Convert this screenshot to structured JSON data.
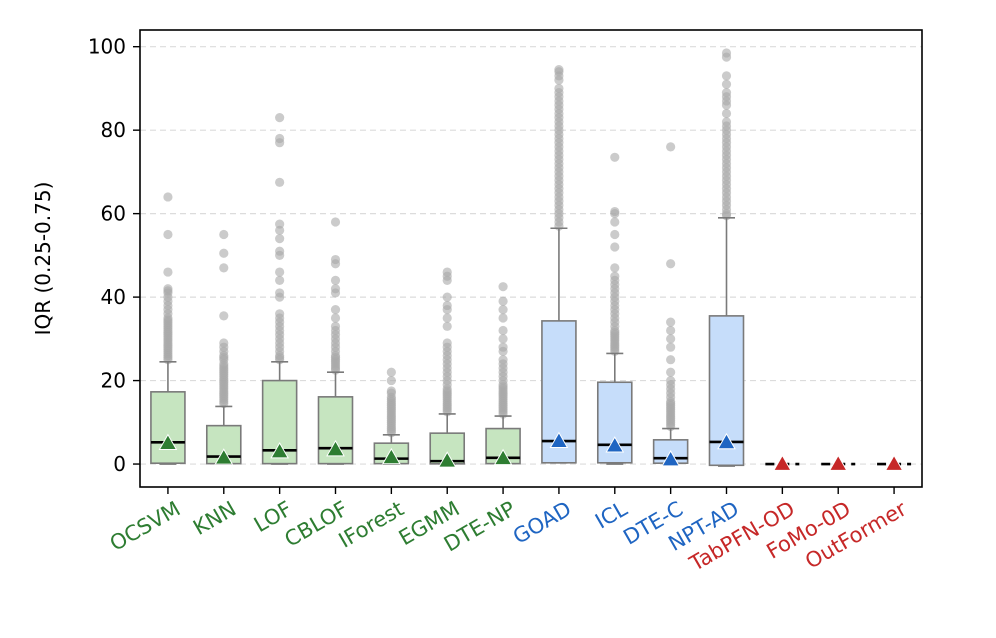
{
  "chart_data": {
    "type": "box",
    "title": "",
    "xlabel": "",
    "ylabel": "IQR (0.25-0.75)",
    "ylim": [
      -5.5,
      104
    ],
    "yticks": [
      0,
      20,
      40,
      60,
      80,
      100
    ],
    "grid": "horizontal dashed",
    "legend": "none",
    "colors": {
      "classical": "#2e7d32",
      "deep": "#1f65c2",
      "foundation": "#c62828",
      "classical_box": "#c6e5c0",
      "deep_box": "#c6ddfa",
      "whisker": "#7a7a7a",
      "median": "#000000",
      "outlier": "#a8a8a8"
    },
    "categories": [
      {
        "name": "OCSVM",
        "group": "classical",
        "q1": 0.2,
        "median": 5.2,
        "q3": 17.3,
        "whislo": 0,
        "whishi": 24.5,
        "mean": 5.0,
        "fliers": [
          25,
          25.5,
          26,
          26.5,
          27,
          27.5,
          28,
          28.5,
          29,
          29.5,
          30,
          30.5,
          31,
          31.5,
          32,
          32.5,
          33,
          33.5,
          34,
          34.5,
          35,
          36,
          37,
          38,
          39,
          40,
          41,
          41.5,
          42,
          46,
          55,
          64
        ]
      },
      {
        "name": "KNN",
        "group": "classical",
        "q1": 0.1,
        "median": 1.8,
        "q3": 9.2,
        "whislo": 0,
        "whishi": 13.8,
        "mean": 1.5,
        "fliers": [
          14.5,
          15,
          15.5,
          16,
          16.5,
          17,
          17.5,
          18,
          18.5,
          19,
          19.5,
          20,
          20.5,
          21,
          21.5,
          22,
          22.5,
          23,
          23.5,
          24,
          25,
          25.5,
          26,
          27,
          28,
          29,
          35.5,
          47,
          50.5,
          55
        ]
      },
      {
        "name": "LOF",
        "group": "classical",
        "q1": 0.1,
        "median": 3.3,
        "q3": 20.0,
        "whislo": 0,
        "whishi": 24.5,
        "mean": 3.0,
        "fliers": [
          25,
          25.5,
          26,
          27,
          28,
          29,
          30,
          31,
          32,
          33,
          34,
          35,
          36,
          40,
          41,
          44,
          46,
          50,
          51,
          54,
          56,
          57.5,
          67.5,
          77,
          78,
          83
        ]
      },
      {
        "name": "CBLOF",
        "group": "classical",
        "q1": 0.1,
        "median": 3.8,
        "q3": 16.1,
        "whislo": 0,
        "whishi": 22.0,
        "mean": 3.5,
        "fliers": [
          22.5,
          23,
          23.5,
          24,
          24.5,
          25,
          25.5,
          26,
          27,
          28,
          29,
          30,
          31,
          32,
          33,
          35,
          37,
          41,
          42,
          44,
          48,
          49,
          58
        ]
      },
      {
        "name": "IForest",
        "group": "classical",
        "q1": 0.1,
        "median": 1.3,
        "q3": 5.0,
        "whislo": 0,
        "whishi": 7.0,
        "mean": 1.6,
        "fliers": [
          7.5,
          8,
          8.5,
          9,
          9.5,
          10,
          10.5,
          11,
          11.5,
          12,
          12.5,
          13,
          13.5,
          14,
          14.5,
          15,
          15.5,
          16,
          17,
          17.5,
          20,
          22
        ]
      },
      {
        "name": "EGMM",
        "group": "classical",
        "q1": 0.05,
        "median": 0.7,
        "q3": 7.4,
        "whislo": 0,
        "whishi": 12.0,
        "mean": 0.8,
        "fliers": [
          12.5,
          13,
          13.5,
          14,
          14.5,
          15,
          15.5,
          16,
          16.5,
          17,
          17.5,
          18,
          19,
          20,
          21,
          22,
          23,
          24,
          25,
          26,
          27,
          28,
          29,
          33,
          35,
          37,
          38,
          40,
          44,
          45,
          46
        ]
      },
      {
        "name": "DTE-NP",
        "group": "classical",
        "q1": 0.1,
        "median": 1.5,
        "q3": 8.5,
        "whislo": 0,
        "whishi": 11.5,
        "mean": 1.4,
        "fliers": [
          12,
          12.5,
          13,
          13.5,
          14,
          14.5,
          15,
          15.5,
          16,
          16.5,
          17,
          17.5,
          18,
          18.5,
          19,
          20,
          21,
          22,
          23,
          24,
          25,
          27,
          28,
          30,
          32,
          35,
          37,
          39,
          42.5
        ]
      },
      {
        "name": "GOAD",
        "group": "deep",
        "q1": 0.3,
        "median": 5.5,
        "q3": 34.3,
        "whislo": 0.3,
        "whishi": 56.5,
        "mean": 5.5,
        "fliers": [
          57,
          58,
          59,
          60,
          61,
          62,
          63,
          64,
          65,
          66,
          67,
          68,
          69,
          70,
          71,
          72,
          73,
          74,
          75,
          76,
          77,
          78,
          79,
          80,
          81,
          82,
          83,
          84,
          85,
          86,
          87,
          88,
          89,
          90,
          92,
          93,
          94,
          94.5
        ]
      },
      {
        "name": "ICL",
        "group": "deep",
        "q1": 0.3,
        "median": 4.6,
        "q3": 19.6,
        "whislo": 0,
        "whishi": 26.5,
        "mean": 4.4,
        "fliers": [
          27,
          27.5,
          28,
          28.5,
          29,
          29.5,
          30,
          30.5,
          31,
          31.5,
          32,
          33,
          34,
          35,
          36,
          37,
          38,
          39,
          40,
          41,
          42,
          43,
          44,
          45,
          47,
          52,
          55,
          58,
          60,
          60.5,
          73.5
        ]
      },
      {
        "name": "DTE-C",
        "group": "deep",
        "q1": 0.2,
        "median": 1.4,
        "q3": 5.8,
        "whislo": 0,
        "whishi": 8.5,
        "mean": 1.1,
        "fliers": [
          9,
          9.5,
          10,
          10.5,
          11,
          11.5,
          12,
          12.5,
          13,
          13.5,
          14,
          14.5,
          15,
          16,
          17,
          18,
          19,
          20,
          22,
          25,
          28,
          30,
          32,
          34,
          48,
          76
        ]
      },
      {
        "name": "NPT-AD",
        "group": "deep",
        "q1": -0.3,
        "median": 5.3,
        "q3": 35.5,
        "whislo": -0.5,
        "whishi": 59.0,
        "mean": 5.2,
        "fliers": [
          59.5,
          60,
          61,
          62,
          63,
          64,
          65,
          66,
          67,
          68,
          69,
          70,
          71,
          72,
          73,
          74,
          75,
          76,
          77,
          78,
          79,
          80,
          81,
          82,
          84,
          86,
          87,
          88,
          89,
          91,
          93,
          97.5,
          98.5
        ]
      },
      {
        "name": "TabPFN-OD",
        "group": "foundation",
        "q1": 0,
        "median": 0,
        "q3": 0,
        "whislo": 0,
        "whishi": 0,
        "mean": 0,
        "fliers": []
      },
      {
        "name": "FoMo-0D",
        "group": "foundation",
        "q1": 0,
        "median": 0,
        "q3": 0,
        "whislo": 0,
        "whishi": 0,
        "mean": 0,
        "fliers": []
      },
      {
        "name": "OutFormer",
        "group": "foundation",
        "q1": 0,
        "median": 0,
        "q3": 0,
        "whislo": 0,
        "whishi": 0,
        "mean": 0,
        "fliers": []
      }
    ]
  }
}
